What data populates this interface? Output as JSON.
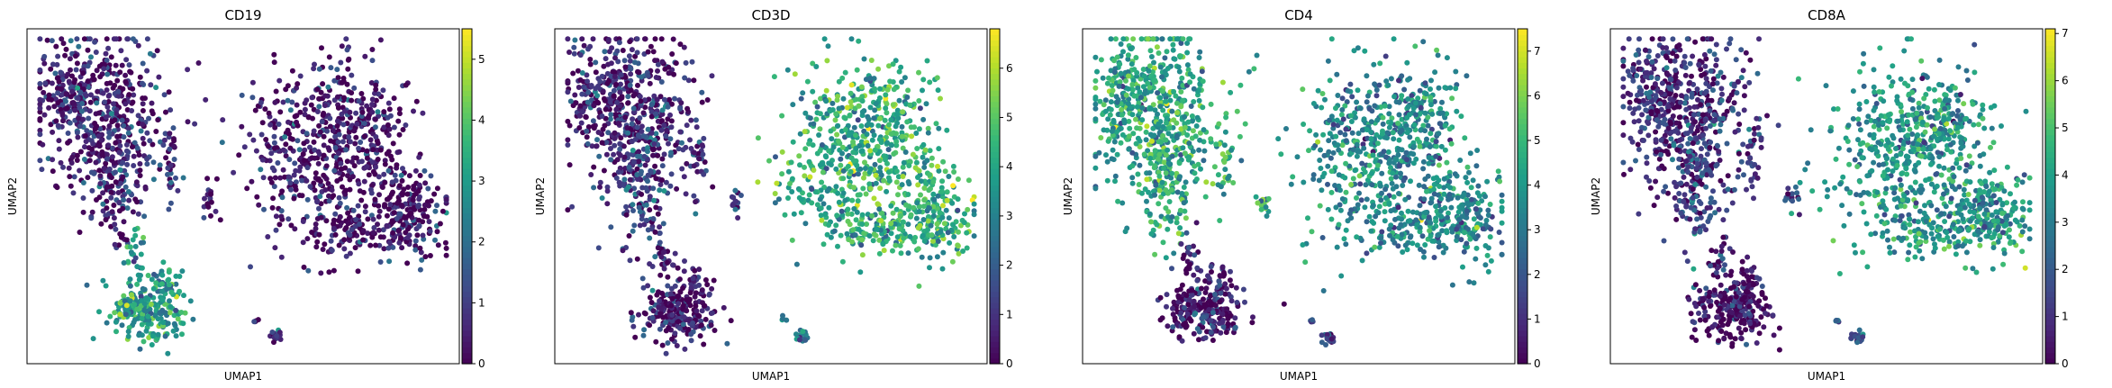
{
  "chart_data": [
    {
      "type": "scatter",
      "title": "CD19",
      "xlabel": "UMAP1",
      "ylabel": "UMAP2",
      "colorbar": {
        "min": 0,
        "max": 5.5,
        "ticks": [
          0,
          1,
          2,
          3,
          4,
          5
        ],
        "colormap": "viridis"
      },
      "clusters": [
        {
          "region": "left-top",
          "value": 0.4
        },
        {
          "region": "left-mid",
          "value": 0.5
        },
        {
          "region": "right",
          "value": 0.2
        },
        {
          "region": "bottom",
          "value": 2.9
        },
        {
          "region": "small",
          "value": 0.5
        }
      ]
    },
    {
      "type": "scatter",
      "title": "CD3D",
      "xlabel": "UMAP1",
      "ylabel": "UMAP2",
      "colorbar": {
        "min": 0,
        "max": 6.8,
        "ticks": [
          0,
          1,
          2,
          3,
          4,
          5,
          6
        ],
        "colormap": "viridis"
      },
      "clusters": [
        {
          "region": "left-top",
          "value": 0.6
        },
        {
          "region": "left-mid",
          "value": 1.2
        },
        {
          "region": "right",
          "value": 4.2
        },
        {
          "region": "bottom",
          "value": 0.3
        },
        {
          "region": "small",
          "value": 2.5
        }
      ]
    },
    {
      "type": "scatter",
      "title": "CD4",
      "xlabel": "UMAP1",
      "ylabel": "UMAP2",
      "colorbar": {
        "min": 0,
        "max": 7.5,
        "ticks": [
          0,
          1,
          2,
          3,
          4,
          5,
          6,
          7
        ],
        "colormap": "viridis"
      },
      "clusters": [
        {
          "region": "left-top",
          "value": 4.3
        },
        {
          "region": "left-mid",
          "value": 4.5
        },
        {
          "region": "right",
          "value": 3.5
        },
        {
          "region": "bottom",
          "value": 0.5
        },
        {
          "region": "small",
          "value": 2.2
        }
      ]
    },
    {
      "type": "scatter",
      "title": "CD8A",
      "xlabel": "UMAP1",
      "ylabel": "UMAP2",
      "colorbar": {
        "min": 0,
        "max": 7.1,
        "ticks": [
          0,
          1,
          2,
          3,
          4,
          5,
          6,
          7
        ],
        "colormap": "viridis"
      },
      "clusters": [
        {
          "region": "left-top",
          "value": 0.8
        },
        {
          "region": "left-mid",
          "value": 1.5
        },
        {
          "region": "right",
          "value": 3.6
        },
        {
          "region": "bottom",
          "value": 0.3
        },
        {
          "region": "small",
          "value": 2.0
        }
      ]
    }
  ]
}
